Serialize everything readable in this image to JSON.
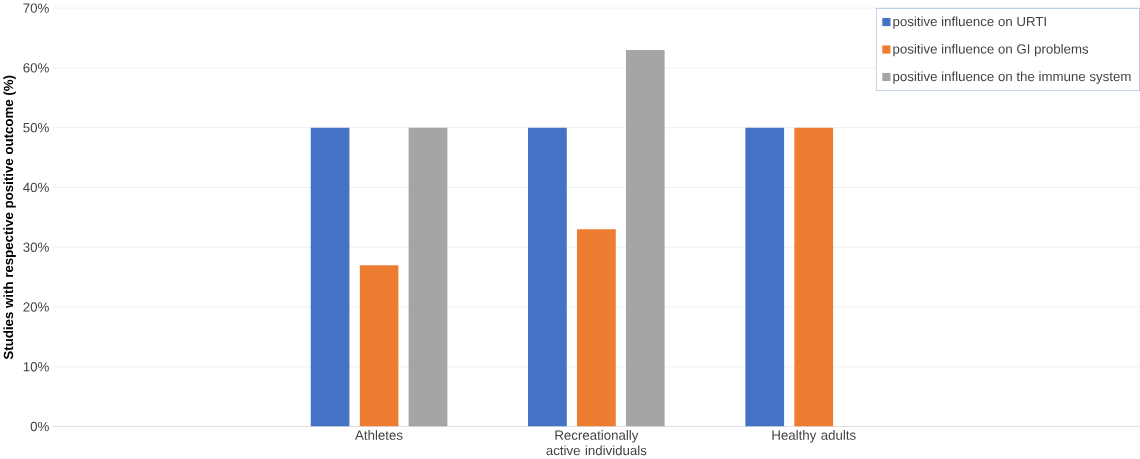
{
  "chart_data": {
    "type": "bar",
    "ylabel": "Studies with respective positive outcome (%)",
    "categories": [
      null,
      "Athletes",
      "Recreationally active individuals",
      "Healthy adults",
      null
    ],
    "series": [
      {
        "name": "positive influence on URTI",
        "color": "#4472c4",
        "values": [
          null,
          50,
          50,
          50,
          null
        ]
      },
      {
        "name": "positive influence on GI problems",
        "color": "#ed7d31",
        "values": [
          null,
          27,
          33,
          50,
          null
        ]
      },
      {
        "name": "positive influence on the immune system",
        "color": "#a5a5a5",
        "values": [
          null,
          50,
          63,
          null,
          null
        ]
      }
    ],
    "ylim": [
      0,
      70
    ],
    "yticks": [
      {
        "value": 0,
        "label": "0%"
      },
      {
        "value": 10,
        "label": "10%"
      },
      {
        "value": 20,
        "label": "20%"
      },
      {
        "value": 30,
        "label": "30%"
      },
      {
        "value": 40,
        "label": "40%"
      },
      {
        "value": 50,
        "label": "50%"
      },
      {
        "value": 60,
        "label": "60%"
      },
      {
        "value": 70,
        "label": "70%"
      }
    ],
    "grid": "y",
    "legend": "top right"
  }
}
